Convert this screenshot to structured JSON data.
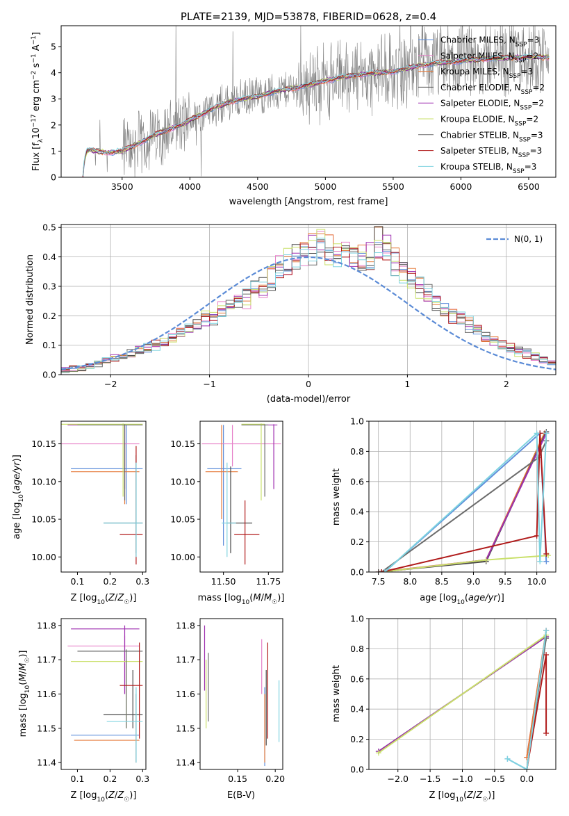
{
  "title": "PLATE=2139, MJD=53878, FIBERID=0628, z=0.4",
  "colors": {
    "chabrier_miles": "#5f8fdb",
    "salpeter_miles": "#e680c8",
    "kroupa_miles": "#e67a3a",
    "chabrier_elodie": "#4a4a4a",
    "salpeter_elodie": "#9e2fb0",
    "kroupa_elodie": "#c9e06a",
    "chabrier_stelib": "#6b6b6b",
    "salpeter_stelib": "#b01a1a",
    "kroupa_stelib": "#7fd3e0",
    "data": "#808080",
    "normal": "#5b8bd6"
  },
  "legend_spectrum": [
    "Chabrier MILES, N_SSP=3",
    "Salpeter MILES, N_SSP=2",
    "Kroupa MILES, N_SSP=3",
    "Chabrier ELODIE, N_SSP=2",
    "Salpeter ELODIE, N_SSP=2",
    "Kroupa ELODIE, N_SSP=2",
    "Chabrier STELIB, N_SSP=3",
    "Salpeter STELIB, N_SSP=3",
    "Kroupa STELIB, N_SSP=3"
  ],
  "legend_hist": "N(0, 1)",
  "chart_data": [
    {
      "id": "spectrum",
      "type": "line",
      "title": "PLATE=2139, MJD=53878, FIBERID=0628, z=0.4",
      "xlabel": "wavelength [Angstrom, rest frame]",
      "ylabel": "Flux [f_λ 10^-17 erg cm^-2 s^-1 A^-1]",
      "xlim": [
        3050,
        6700
      ],
      "ylim": [
        0,
        5.8
      ],
      "xticks": [
        3500,
        4000,
        4500,
        5000,
        5500,
        6000,
        6500
      ],
      "yticks": [
        0,
        1,
        2,
        3,
        4,
        5
      ],
      "model_continuum": {
        "x": [
          3210,
          3220,
          3240,
          3260,
          3300,
          3400,
          3500,
          3600,
          3700,
          3800,
          3900,
          3950,
          4000,
          4100,
          4200,
          4300,
          4400,
          4500,
          4600,
          4700,
          4800,
          4900,
          5000,
          5100,
          5200,
          5300,
          5400,
          5500,
          5600,
          5700,
          5800,
          5900,
          6000,
          6100,
          6200,
          6300,
          6400,
          6500
        ],
        "y": [
          0.0,
          0.6,
          1.0,
          1.05,
          1.0,
          0.95,
          1.0,
          1.25,
          1.5,
          1.75,
          1.95,
          2.0,
          2.2,
          2.45,
          2.7,
          2.9,
          3.0,
          3.1,
          3.25,
          3.35,
          3.45,
          3.55,
          3.7,
          3.8,
          3.9,
          3.95,
          4.0,
          4.05,
          4.15,
          4.3,
          4.35,
          4.4,
          4.45,
          4.5,
          4.55,
          4.55,
          4.6,
          4.6
        ]
      }
    },
    {
      "id": "residual-hist",
      "type": "area",
      "xlabel": "(data-model)/error",
      "ylabel": "Normed distribution",
      "xlim": [
        -2.5,
        2.5
      ],
      "ylim": [
        0,
        0.51
      ],
      "xticks": [
        -2,
        -1,
        0,
        1,
        2
      ],
      "yticks": [
        0.0,
        0.1,
        0.2,
        0.3,
        0.4,
        0.5
      ],
      "bin_width": 0.1,
      "hist_template": [
        0.015,
        0.02,
        0.02,
        0.03,
        0.04,
        0.05,
        0.055,
        0.06,
        0.07,
        0.08,
        0.09,
        0.1,
        0.11,
        0.12,
        0.14,
        0.155,
        0.17,
        0.19,
        0.2,
        0.22,
        0.235,
        0.25,
        0.265,
        0.28,
        0.3,
        0.33,
        0.355,
        0.38,
        0.4,
        0.42,
        0.43,
        0.44,
        0.43,
        0.42,
        0.4,
        0.42,
        0.41,
        0.4,
        0.45,
        0.43,
        0.38,
        0.35,
        0.33,
        0.3,
        0.27,
        0.24,
        0.22,
        0.2,
        0.19,
        0.17,
        0.15,
        0.13,
        0.12,
        0.1,
        0.09,
        0.08,
        0.07,
        0.06,
        0.05,
        0.04
      ],
      "normal": {
        "mean": 0,
        "sigma": 1
      }
    },
    {
      "id": "age-vs-Z",
      "type": "scatter",
      "xlabel": "Z [log10(Z/Z☉)]",
      "ylabel": "age [log10(age/yr)]",
      "xlim": [
        0.05,
        0.31
      ],
      "ylim": [
        9.98,
        10.18
      ],
      "xticks": [
        0.1,
        0.2,
        0.3
      ],
      "yticks": [
        10.0,
        10.05,
        10.1,
        10.15
      ],
      "points": [
        {
          "x": 0.25,
          "y": 10.117,
          "xl": 0.08,
          "xh": 0.3,
          "yl": 10.07,
          "yh": 10.175,
          "c": "chabrier_miles"
        },
        {
          "x": 0.245,
          "y": 10.15,
          "xl": 0.05,
          "xh": 0.29,
          "yl": 10.12,
          "yh": 10.175,
          "c": "salpeter_miles"
        },
        {
          "x": 0.245,
          "y": 10.113,
          "xl": 0.08,
          "xh": 0.29,
          "yl": 10.07,
          "yh": 10.15,
          "c": "kroupa_miles"
        },
        {
          "x": 0.28,
          "y": 10.045,
          "xl": 0.18,
          "xh": 0.3,
          "yl": 10.005,
          "yh": 10.135,
          "c": "chabrier_elodie"
        },
        {
          "x": 0.245,
          "y": 10.175,
          "xl": 0.07,
          "xh": 0.3,
          "yl": 10.09,
          "yh": 10.176,
          "c": "salpeter_elodie"
        },
        {
          "x": 0.24,
          "y": 10.176,
          "xl": 0.05,
          "xh": 0.3,
          "yl": 10.08,
          "yh": 10.177,
          "c": "kroupa_elodie"
        },
        {
          "x": 0.245,
          "y": 10.175,
          "xl": 0.1,
          "xh": 0.3,
          "yl": 10.075,
          "yh": 10.176,
          "c": "chabrier_stelib"
        },
        {
          "x": 0.28,
          "y": 10.03,
          "xl": 0.23,
          "xh": 0.3,
          "yl": 9.99,
          "yh": 10.147,
          "c": "salpeter_stelib"
        },
        {
          "x": 0.28,
          "y": 10.045,
          "xl": 0.18,
          "xh": 0.3,
          "yl": 10.0,
          "yh": 10.125,
          "c": "kroupa_stelib"
        }
      ]
    },
    {
      "id": "age-vs-mass",
      "type": "scatter",
      "xlabel": "mass [log10(M/M☉)]",
      "ylabel": "",
      "xlim": [
        11.37,
        11.83
      ],
      "ylim": [
        9.98,
        10.18
      ],
      "xticks": [
        11.5,
        11.75
      ],
      "yticks": [
        10.0,
        10.05,
        10.1,
        10.15
      ],
      "points": [
        {
          "x": 11.5,
          "y": 10.117,
          "xl": 11.41,
          "xh": 11.6,
          "yl": 10.015,
          "yh": 10.175,
          "c": "chabrier_miles"
        },
        {
          "x": 11.55,
          "y": 10.15,
          "xl": 11.38,
          "xh": 11.82,
          "yl": 10.12,
          "yh": 10.175,
          "c": "salpeter_miles"
        },
        {
          "x": 11.49,
          "y": 10.113,
          "xl": 11.4,
          "xh": 11.58,
          "yl": 10.05,
          "yh": 10.175,
          "c": "kroupa_miles"
        },
        {
          "x": 11.54,
          "y": 10.045,
          "xl": 11.52,
          "xh": 11.66,
          "yl": 10.005,
          "yh": 10.12,
          "c": "chabrier_elodie"
        },
        {
          "x": 11.78,
          "y": 10.175,
          "xl": 11.7,
          "xh": 11.8,
          "yl": 10.09,
          "yh": 10.176,
          "c": "salpeter_elodie"
        },
        {
          "x": 11.71,
          "y": 10.176,
          "xl": 11.6,
          "xh": 11.73,
          "yl": 10.075,
          "yh": 10.177,
          "c": "kroupa_elodie"
        },
        {
          "x": 11.73,
          "y": 10.175,
          "xl": 11.6,
          "xh": 11.75,
          "yl": 10.08,
          "yh": 10.176,
          "c": "chabrier_stelib"
        },
        {
          "x": 11.62,
          "y": 10.03,
          "xl": 11.56,
          "xh": 11.7,
          "yl": 9.99,
          "yh": 10.075,
          "c": "salpeter_stelib"
        },
        {
          "x": 11.52,
          "y": 10.045,
          "xl": 11.49,
          "xh": 11.57,
          "yl": 10.0,
          "yh": 10.125,
          "c": "kroupa_stelib"
        }
      ]
    },
    {
      "id": "massweight-vs-age",
      "type": "line",
      "xlabel": "age [log10(age/yr)]",
      "ylabel": "mass weight",
      "xlim": [
        7.35,
        10.3
      ],
      "ylim": [
        0,
        1.0
      ],
      "xticks": [
        7.5,
        8.0,
        8.5,
        9.0,
        9.5,
        10.0
      ],
      "yticks": [
        0.0,
        0.2,
        0.4,
        0.6,
        0.8,
        1.0
      ],
      "series": [
        {
          "c": "chabrier_miles",
          "x": [
            7.6,
            10.05,
            10.15
          ],
          "y": [
            0.0,
            0.92,
            0.07
          ]
        },
        {
          "c": "salpeter_miles",
          "x": [
            7.5,
            9.2,
            10.15
          ],
          "y": [
            0.0,
            0.08,
            0.92
          ]
        },
        {
          "c": "kroupa_miles",
          "x": [
            7.5,
            9.2,
            10.12
          ],
          "y": [
            0.0,
            0.08,
            0.92
          ]
        },
        {
          "c": "chabrier_elodie",
          "x": [
            7.5,
            9.2,
            10.15
          ],
          "y": [
            0.0,
            0.07,
            0.93
          ]
        },
        {
          "c": "salpeter_elodie",
          "x": [
            7.55,
            9.2,
            10.15
          ],
          "y": [
            0.0,
            0.08,
            0.92
          ]
        },
        {
          "c": "kroupa_elodie",
          "x": [
            7.55,
            9.2,
            10.18
          ],
          "y": [
            0.0,
            0.08,
            0.11
          ]
        },
        {
          "c": "chabrier_stelib",
          "x": [
            7.55,
            10.03,
            10.15
          ],
          "y": [
            0.0,
            0.76,
            0.87
          ]
        },
        {
          "c": "salpeter_stelib",
          "x": [
            7.55,
            10.0,
            10.05,
            10.15
          ],
          "y": [
            0.0,
            0.24,
            0.92,
            0.12
          ]
        },
        {
          "c": "kroupa_stelib",
          "x": [
            7.6,
            10.0,
            10.05,
            10.15
          ],
          "y": [
            0.0,
            0.92,
            0.07,
            0.92
          ]
        }
      ]
    },
    {
      "id": "mass-vs-Z",
      "type": "scatter",
      "xlabel": "Z [log10(Z/Z☉)]",
      "ylabel": "mass [log10(M/M☉)]",
      "xlim": [
        0.05,
        0.31
      ],
      "ylim": [
        11.38,
        11.82
      ],
      "xticks": [
        0.1,
        0.2,
        0.3
      ],
      "yticks": [
        11.4,
        11.5,
        11.6,
        11.7,
        11.8
      ],
      "points": [
        {
          "x": 0.28,
          "y": 11.48,
          "xl": 0.08,
          "xh": 0.29,
          "yl": 11.4,
          "yh": 11.6,
          "c": "chabrier_miles"
        },
        {
          "x": 0.245,
          "y": 11.74,
          "xl": 0.07,
          "xh": 0.29,
          "yl": 11.6,
          "yh": 11.77,
          "c": "salpeter_miles"
        },
        {
          "x": 0.28,
          "y": 11.465,
          "xl": 0.09,
          "xh": 0.29,
          "yl": 11.4,
          "yh": 11.6,
          "c": "kroupa_miles"
        },
        {
          "x": 0.27,
          "y": 11.54,
          "xl": 0.18,
          "xh": 0.3,
          "yl": 11.5,
          "yh": 11.67,
          "c": "chabrier_elodie"
        },
        {
          "x": 0.245,
          "y": 11.79,
          "xl": 0.08,
          "xh": 0.29,
          "yl": 11.6,
          "yh": 11.8,
          "c": "salpeter_elodie"
        },
        {
          "x": 0.25,
          "y": 11.695,
          "xl": 0.08,
          "xh": 0.3,
          "yl": 11.5,
          "yh": 11.7,
          "c": "kroupa_elodie"
        },
        {
          "x": 0.25,
          "y": 11.725,
          "xl": 0.1,
          "xh": 0.3,
          "yl": 11.5,
          "yh": 11.73,
          "c": "chabrier_stelib"
        },
        {
          "x": 0.29,
          "y": 11.625,
          "xl": 0.23,
          "xh": 0.3,
          "yl": 11.47,
          "yh": 11.75,
          "c": "salpeter_stelib"
        },
        {
          "x": 0.28,
          "y": 11.52,
          "xl": 0.19,
          "xh": 0.3,
          "yl": 11.4,
          "yh": 11.62,
          "c": "kroupa_stelib"
        }
      ]
    },
    {
      "id": "mass-vs-ebv",
      "type": "scatter",
      "xlabel": "E(B-V)",
      "ylabel": "",
      "xlim": [
        0.1,
        0.21
      ],
      "ylim": [
        11.38,
        11.82
      ],
      "xticks": [
        0.15,
        0.2
      ],
      "yticks": [
        11.4,
        11.5,
        11.6,
        11.7,
        11.8
      ],
      "points": [
        {
          "x": 0.186,
          "y": 11.5,
          "yl": 11.39,
          "yh": 11.62,
          "c": "chabrier_miles"
        },
        {
          "x": 0.182,
          "y": 11.7,
          "yl": 11.6,
          "yh": 11.76,
          "c": "salpeter_miles"
        },
        {
          "x": 0.186,
          "y": 11.5,
          "yl": 11.4,
          "yh": 11.6,
          "c": "kroupa_miles"
        },
        {
          "x": 0.188,
          "y": 11.55,
          "yl": 11.45,
          "yh": 11.67,
          "c": "chabrier_elodie"
        },
        {
          "x": 0.106,
          "y": 11.7,
          "yl": 11.61,
          "yh": 11.8,
          "c": "salpeter_elodie"
        },
        {
          "x": 0.108,
          "y": 11.6,
          "yl": 11.5,
          "yh": 11.7,
          "c": "kroupa_elodie"
        },
        {
          "x": 0.111,
          "y": 11.62,
          "yl": 11.52,
          "yh": 11.72,
          "c": "chabrier_stelib"
        },
        {
          "x": 0.19,
          "y": 11.62,
          "yl": 11.47,
          "yh": 11.75,
          "c": "salpeter_stelib"
        },
        {
          "x": 0.205,
          "y": 11.55,
          "yl": 11.46,
          "yh": 11.64,
          "c": "kroupa_stelib"
        }
      ]
    },
    {
      "id": "massweight-vs-Z",
      "type": "line",
      "xlabel": "Z [log10(Z/Z☉)]",
      "ylabel": "mass weight",
      "xlim": [
        -2.45,
        0.45
      ],
      "ylim": [
        0,
        1.0
      ],
      "xticks": [
        -2.0,
        -1.5,
        -1.0,
        -0.5,
        0.0
      ],
      "yticks": [
        0.0,
        0.2,
        0.4,
        0.6,
        0.8,
        1.0
      ],
      "series": [
        {
          "c": "chabrier_miles",
          "x": [
            -0.3,
            0.0,
            0.3
          ],
          "y": [
            0.07,
            0.0,
            0.92
          ]
        },
        {
          "c": "salpeter_miles",
          "x": [
            0.0,
            0.3
          ],
          "y": [
            0.08,
            0.92
          ]
        },
        {
          "c": "kroupa_miles",
          "x": [
            0.0,
            0.3
          ],
          "y": [
            0.08,
            0.92
          ]
        },
        {
          "c": "chabrier_elodie",
          "x": [
            -2.3,
            0.3
          ],
          "y": [
            0.12,
            0.88
          ]
        },
        {
          "c": "salpeter_elodie",
          "x": [
            -2.3,
            0.3
          ],
          "y": [
            0.12,
            0.88
          ]
        },
        {
          "c": "kroupa_elodie",
          "x": [
            -2.3,
            0.3
          ],
          "y": [
            0.11,
            0.89
          ]
        },
        {
          "c": "chabrier_stelib",
          "x": [
            0.0,
            0.3
          ],
          "y": [
            0.0,
            0.87
          ]
        },
        {
          "c": "salpeter_stelib",
          "x": [
            0.0,
            0.3,
            0.3
          ],
          "y": [
            0.0,
            0.76,
            0.24
          ]
        },
        {
          "c": "kroupa_stelib",
          "x": [
            -0.3,
            0.0,
            0.3
          ],
          "y": [
            0.07,
            0.0,
            0.92
          ]
        }
      ]
    }
  ]
}
